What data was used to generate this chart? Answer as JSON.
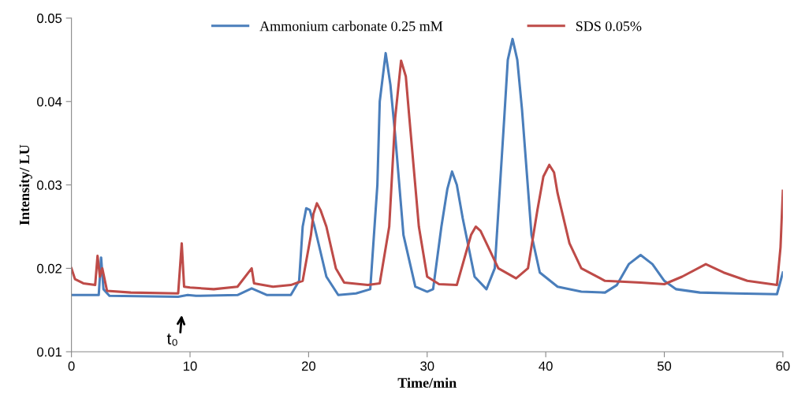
{
  "chart_data": {
    "type": "line",
    "xlabel": "Time/min",
    "ylabel": "Intensity/ LU",
    "xlim": [
      0,
      60
    ],
    "ylim": [
      0.01,
      0.05
    ],
    "xticks": [
      0,
      10,
      20,
      30,
      40,
      50,
      60
    ],
    "yticks": [
      0.01,
      0.02,
      0.03,
      0.04,
      0.05
    ],
    "grid": false,
    "legend": "top",
    "marker": "none",
    "line_style": "solid",
    "annotations": [
      "t₀"
    ],
    "series": [
      {
        "name": "Ammonium carbonate 0.25 mM",
        "color": "#4a7ebb",
        "x": [
          0,
          2.3,
          2.5,
          2.7,
          3.2,
          9,
          9.8,
          10.5,
          14,
          15.2,
          16.5,
          18.5,
          19.2,
          19.5,
          19.8,
          20.1,
          20.5,
          21.5,
          22.5,
          24,
          25.2,
          25.8,
          26.0,
          26.5,
          26.9,
          27.3,
          28,
          29,
          30,
          30.5,
          31.2,
          31.7,
          32.1,
          32.5,
          33,
          34,
          35,
          35.7,
          36.5,
          36.8,
          37.2,
          37.6,
          38,
          38.8,
          39.5,
          41,
          43,
          45,
          46,
          47,
          48,
          49,
          50,
          51,
          53,
          56,
          59.5,
          60
        ],
        "values": [
          0.0168,
          0.0168,
          0.0213,
          0.0175,
          0.0167,
          0.0166,
          0.0168,
          0.0167,
          0.0168,
          0.0176,
          0.0168,
          0.0168,
          0.0185,
          0.025,
          0.0272,
          0.027,
          0.025,
          0.019,
          0.0168,
          0.017,
          0.0175,
          0.03,
          0.04,
          0.0458,
          0.042,
          0.036,
          0.024,
          0.0178,
          0.0172,
          0.0175,
          0.025,
          0.0295,
          0.0316,
          0.03,
          0.026,
          0.019,
          0.0175,
          0.02,
          0.038,
          0.045,
          0.0475,
          0.045,
          0.039,
          0.024,
          0.0195,
          0.0178,
          0.0172,
          0.0171,
          0.018,
          0.0205,
          0.0216,
          0.0205,
          0.0185,
          0.0175,
          0.0171,
          0.017,
          0.0169,
          0.0195
        ]
      },
      {
        "name": "SDS 0.05%",
        "color": "#be4b48",
        "x": [
          0,
          0.3,
          1,
          2,
          2.2,
          2.4,
          2.6,
          3,
          5,
          9,
          9.3,
          9.5,
          10,
          12,
          14,
          15.2,
          15.4,
          17,
          18.5,
          19.5,
          20.2,
          20.4,
          20.7,
          21.0,
          21.5,
          22.3,
          23,
          25,
          26,
          26.8,
          27.3,
          27.8,
          28.2,
          28.5,
          29.3,
          30,
          31,
          32.5,
          33.3,
          33.7,
          34.1,
          34.5,
          35,
          36,
          37.5,
          38.5,
          39.3,
          39.8,
          40.3,
          40.7,
          41,
          42,
          43,
          45,
          48,
          50,
          51.5,
          53.5,
          55,
          57,
          59.5,
          59.8,
          60
        ],
        "values": [
          0.02,
          0.0187,
          0.0182,
          0.018,
          0.0215,
          0.019,
          0.02,
          0.0173,
          0.0171,
          0.017,
          0.023,
          0.0178,
          0.0177,
          0.0175,
          0.0178,
          0.02,
          0.0182,
          0.0178,
          0.018,
          0.0185,
          0.024,
          0.0265,
          0.0278,
          0.027,
          0.025,
          0.02,
          0.0183,
          0.018,
          0.0182,
          0.025,
          0.038,
          0.0449,
          0.043,
          0.038,
          0.025,
          0.019,
          0.0181,
          0.018,
          0.022,
          0.024,
          0.025,
          0.0245,
          0.023,
          0.02,
          0.0188,
          0.02,
          0.027,
          0.031,
          0.0324,
          0.0315,
          0.029,
          0.023,
          0.02,
          0.0185,
          0.0183,
          0.0181,
          0.019,
          0.0205,
          0.0195,
          0.0185,
          0.018,
          0.0225,
          0.0293
        ]
      }
    ]
  }
}
